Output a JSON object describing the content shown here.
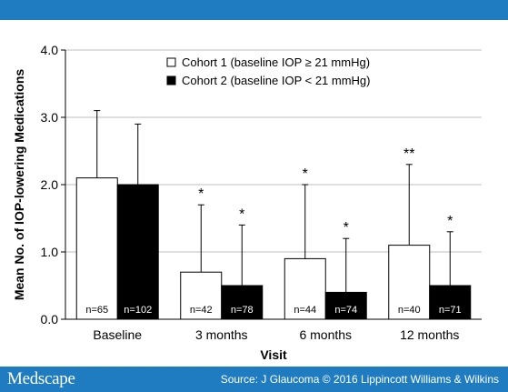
{
  "footer": {
    "brand": "Medscape",
    "source": "Source: J Glaucoma © 2016 Lippincott Williams & Wilkins"
  },
  "chart_data": {
    "type": "bar",
    "ylabel": "Mean No. of IOP-lowering Medications",
    "xlabel": "Visit",
    "ylim": [
      0,
      4
    ],
    "yticks": [
      "0.0",
      "1.0",
      "2.0",
      "3.0",
      "4.0"
    ],
    "grid": true,
    "legend_position": "top-center",
    "categories": [
      "Baseline",
      "3 months",
      "6 months",
      "12 months"
    ],
    "series": [
      {
        "name": "Cohort 1 (baseline IOP ≥ 21 mmHg)",
        "color": "#ffffff",
        "values": [
          2.1,
          0.7,
          0.9,
          1.1
        ],
        "error_upper": [
          3.1,
          1.7,
          2.0,
          2.3
        ],
        "n_labels": [
          "n=65",
          "n=42",
          "n=44",
          "n=40"
        ],
        "significance": [
          "",
          "*",
          "*",
          "**"
        ]
      },
      {
        "name": "Cohort 2 (baseline IOP < 21 mmHg)",
        "color": "#000000",
        "values": [
          2.0,
          0.5,
          0.4,
          0.5
        ],
        "error_upper": [
          2.9,
          1.4,
          1.2,
          1.3
        ],
        "n_labels": [
          "n=102",
          "n=78",
          "n=74",
          "n=71"
        ],
        "significance": [
          "",
          "*",
          "*",
          "*"
        ]
      }
    ]
  }
}
